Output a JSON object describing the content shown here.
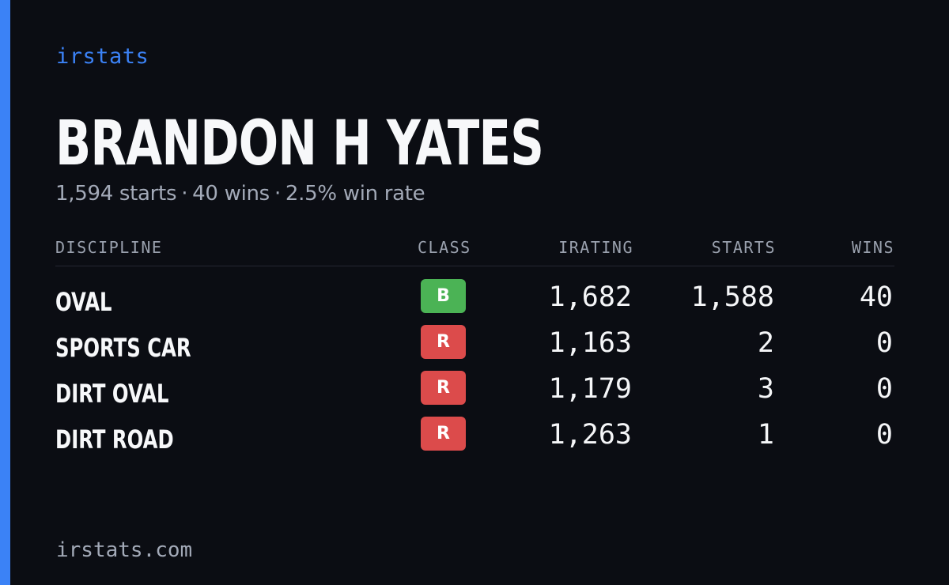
{
  "brand": "irstats",
  "driver": {
    "name": "BRANDON H YATES",
    "starts_text": "1,594 starts",
    "wins_text": "40 wins",
    "win_rate_text": "2.5% win rate",
    "separator": "·"
  },
  "table": {
    "headers": {
      "discipline": "DISCIPLINE",
      "class": "CLASS",
      "irating": "IRATING",
      "starts": "STARTS",
      "wins": "WINS"
    },
    "rows": [
      {
        "discipline": "OVAL",
        "class": "B",
        "class_color": "#4bb355",
        "irating": "1,682",
        "starts": "1,588",
        "wins": "40"
      },
      {
        "discipline": "SPORTS CAR",
        "class": "R",
        "class_color": "#dc4b4b",
        "irating": "1,163",
        "starts": "2",
        "wins": "0"
      },
      {
        "discipline": "DIRT OVAL",
        "class": "R",
        "class_color": "#dc4b4b",
        "irating": "1,179",
        "starts": "3",
        "wins": "0"
      },
      {
        "discipline": "DIRT ROAD",
        "class": "R",
        "class_color": "#dc4b4b",
        "irating": "1,263",
        "starts": "1",
        "wins": "0"
      }
    ]
  },
  "footer": "irstats.com",
  "colors": {
    "background": "#0b0d13",
    "accent": "#3b82f6",
    "class_b": "#4bb355",
    "class_r": "#dc4b4b"
  }
}
